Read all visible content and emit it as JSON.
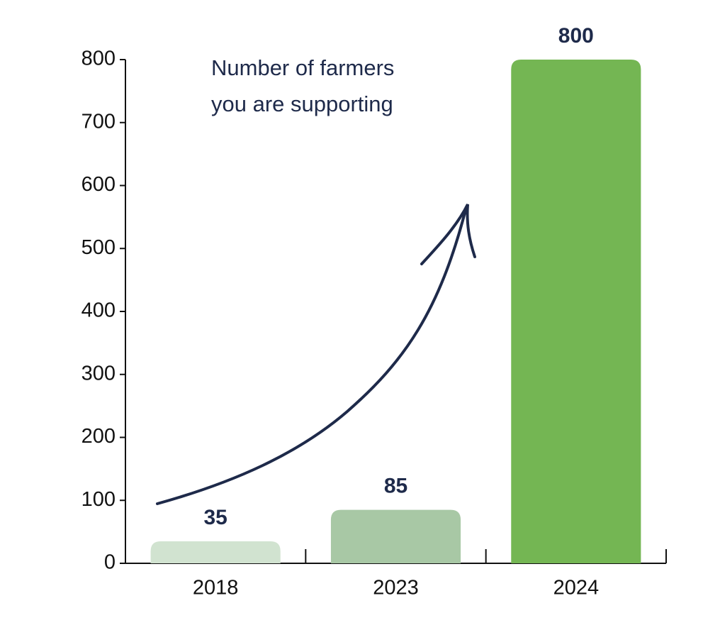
{
  "chart_data": {
    "type": "bar",
    "title": [
      "Number of farmers",
      "you are supporting"
    ],
    "categories": [
      "2018",
      "2023",
      "2024"
    ],
    "values": [
      35,
      85,
      800
    ],
    "colors": [
      "#d1e3d0",
      "#a8c8a5",
      "#74b653"
    ],
    "ylim": [
      0,
      800
    ],
    "yticks": [
      0,
      100,
      200,
      300,
      400,
      500,
      600,
      700,
      800
    ],
    "show_value_labels": true
  }
}
